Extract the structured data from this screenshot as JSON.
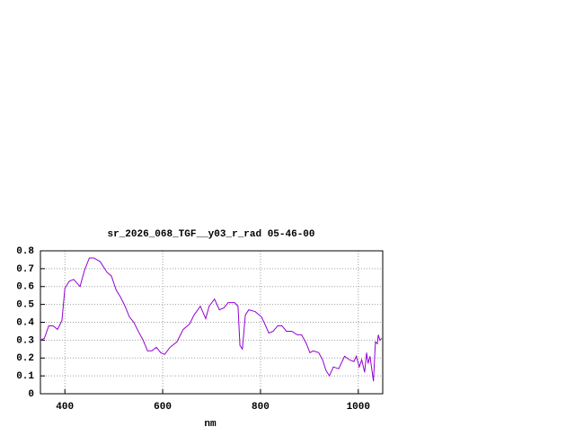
{
  "chart_data": {
    "type": "line",
    "title": "sr_2026_068_TGF__y03_r_rad 05-46-00",
    "x_label": "nm",
    "xlim": [
      350,
      1050
    ],
    "xticks": [
      400,
      600,
      800,
      1000
    ],
    "ylim": [
      0,
      0.8
    ],
    "yticks": [
      0,
      0.1,
      0.2,
      0.3,
      0.4,
      0.5,
      0.6,
      0.7,
      0.8
    ],
    "grid": true,
    "series": [
      {
        "color": "#9400d3",
        "x": [
          350,
          358,
          367,
          376,
          385,
          394,
          400,
          409,
          418,
          431,
          440,
          450,
          459,
          472,
          486,
          495,
          505,
          514,
          523,
          532,
          541,
          550,
          560,
          569,
          578,
          587,
          596,
          604,
          615,
          629,
          642,
          655,
          664,
          677,
          688,
          695,
          706,
          716,
          725,
          734,
          747,
          754,
          758,
          763,
          769,
          776,
          789,
          802,
          809,
          817,
          826,
          835,
          844,
          853,
          864,
          875,
          884,
          894,
          901,
          908,
          919,
          927,
          934,
          941,
          949,
          960,
          972,
          982,
          991,
          996,
          1002,
          1007,
          1013,
          1017,
          1020,
          1024,
          1028,
          1031,
          1035,
          1039,
          1041,
          1044,
          1048
        ],
        "values": [
          0.3,
          0.31,
          0.38,
          0.38,
          0.36,
          0.41,
          0.59,
          0.63,
          0.64,
          0.6,
          0.69,
          0.76,
          0.76,
          0.74,
          0.68,
          0.66,
          0.58,
          0.54,
          0.49,
          0.43,
          0.4,
          0.35,
          0.3,
          0.24,
          0.24,
          0.26,
          0.23,
          0.22,
          0.26,
          0.29,
          0.36,
          0.39,
          0.44,
          0.49,
          0.42,
          0.49,
          0.53,
          0.47,
          0.48,
          0.51,
          0.51,
          0.49,
          0.27,
          0.25,
          0.44,
          0.47,
          0.46,
          0.43,
          0.39,
          0.34,
          0.35,
          0.38,
          0.38,
          0.35,
          0.35,
          0.33,
          0.33,
          0.28,
          0.23,
          0.24,
          0.23,
          0.19,
          0.13,
          0.1,
          0.15,
          0.14,
          0.21,
          0.19,
          0.18,
          0.21,
          0.15,
          0.19,
          0.12,
          0.23,
          0.17,
          0.21,
          0.13,
          0.07,
          0.29,
          0.28,
          0.33,
          0.3,
          0.31
        ]
      }
    ]
  }
}
